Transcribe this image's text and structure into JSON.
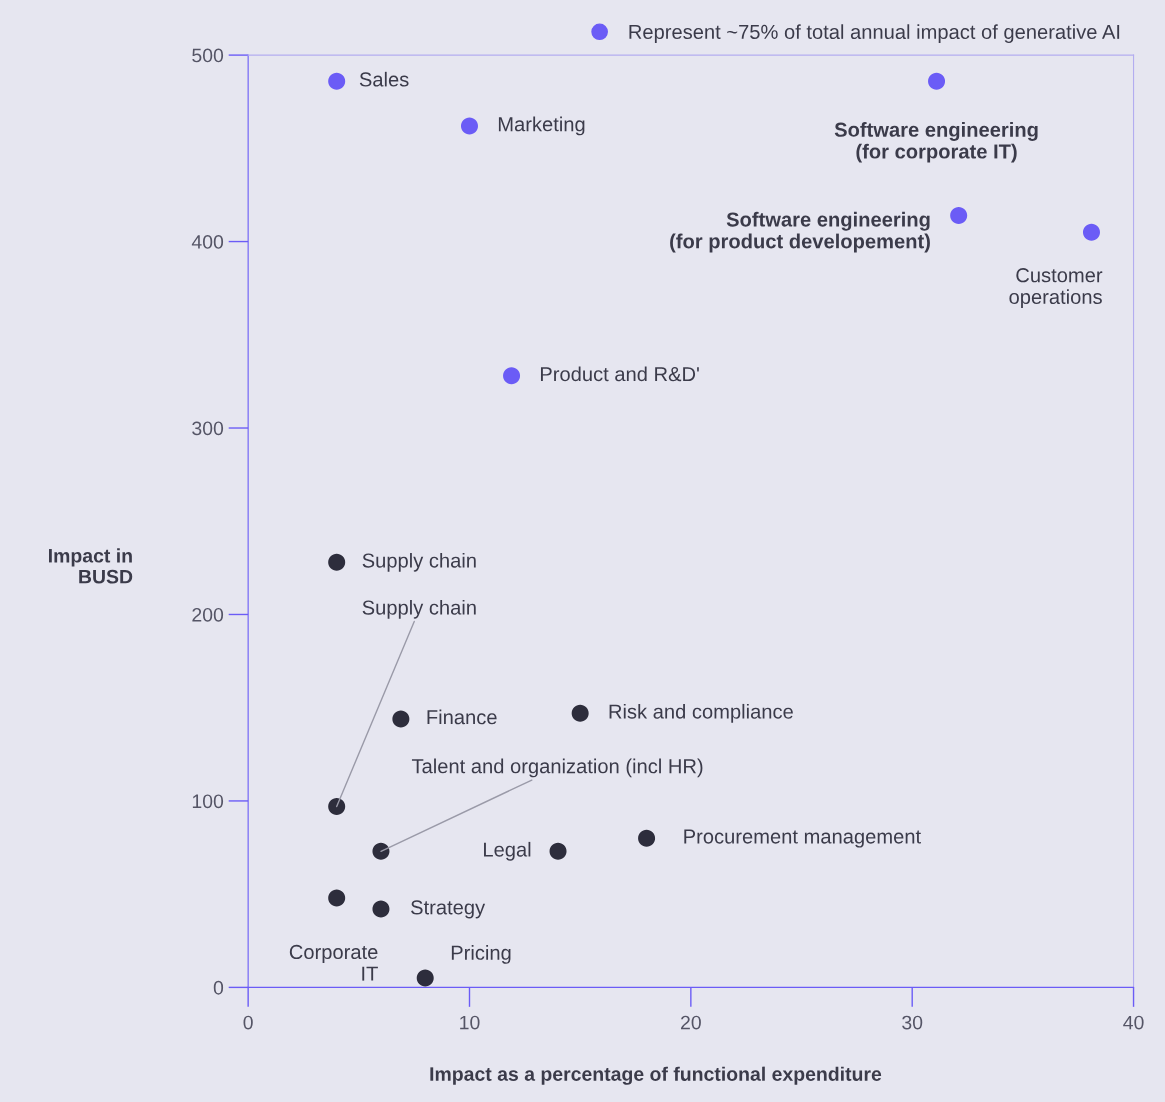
{
  "chart_data": {
    "type": "scatter",
    "xlabel": "Impact as a percentage of functional expenditure",
    "ylabel": "Impact in\nBUSD",
    "series": [
      {
        "name": "Represent ~75% of total annual impact of generative AI",
        "color": "#6b5cf6",
        "x": [
          4,
          10,
          31.1,
          32.1,
          38.1,
          11.9
        ],
        "values": [
          486,
          462,
          486,
          414,
          405,
          328
        ]
      },
      {
        "color": "#2d2d3c",
        "x": [
          4,
          6.9,
          15,
          4,
          6,
          14,
          18,
          4,
          6,
          8
        ],
        "values": [
          228,
          144,
          147,
          97,
          73,
          73,
          80,
          48,
          42,
          5
        ]
      }
    ],
    "annotations": [
      {
        "text": "Sales",
        "x": 4,
        "y": 486
      },
      {
        "text": "Marketing",
        "x": 10,
        "y": 462
      },
      {
        "text": "Software engineering\n(for corporate IT)",
        "x": 31.1,
        "y": 486
      },
      {
        "text": "Software engineering\n(for product developement)",
        "x": 32.1,
        "y": 414
      },
      {
        "text": "Customer\noperations",
        "x": 38.1,
        "y": 405
      },
      {
        "text": "Product and R&D'",
        "x": 11.9,
        "y": 328
      },
      {
        "text": "Supply chain",
        "x": 4,
        "y": 228
      },
      {
        "text": "Finance",
        "x": 6.9,
        "y": 144
      },
      {
        "text": "Risk and compliance",
        "x": 15,
        "y": 147
      },
      {
        "text": "Supply chain",
        "x": 4,
        "y": 97
      },
      {
        "text": "Talent and organization (incl HR)",
        "x": 6,
        "y": 73
      },
      {
        "text": "Legal",
        "x": 14,
        "y": 73
      },
      {
        "text": "Procurement management",
        "x": 18,
        "y": 80
      },
      {
        "text": "Corporate\nIT",
        "x": 4,
        "y": 48
      },
      {
        "text": "Strategy",
        "x": 6,
        "y": 42
      },
      {
        "text": "Pricing",
        "x": 8,
        "y": 5
      }
    ],
    "xlim": [
      0,
      40
    ],
    "xticks": [
      0,
      10,
      20,
      30,
      40
    ],
    "ylim": [
      0,
      500
    ],
    "yticks": [
      0,
      100,
      200,
      300,
      400,
      500
    ],
    "grid": false,
    "legend": "top",
    "marker": "circle"
  }
}
